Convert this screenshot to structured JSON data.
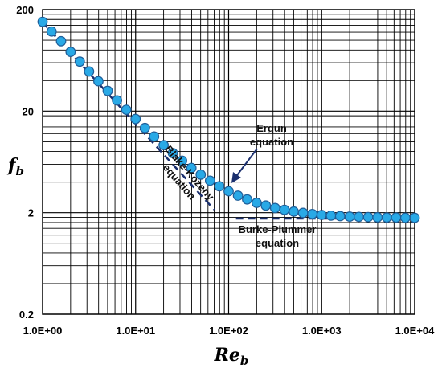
{
  "chart_data": {
    "type": "scatter",
    "xscale": "log",
    "yscale": "log",
    "xlim": [
      1,
      10000
    ],
    "ylim": [
      0.2,
      200
    ],
    "grid": true,
    "xlabel": {
      "main": "Re",
      "sub": "b"
    },
    "ylabel": {
      "main": "f",
      "sub": "b"
    },
    "x_ticks": [
      1,
      10,
      100,
      1000,
      10000
    ],
    "x_tick_labels": [
      "1.0E+00",
      "1.0E+01",
      "1.0E+02",
      "1.0E+03",
      "1.0E+04"
    ],
    "y_ticks": [
      0.2,
      2,
      20,
      200
    ],
    "y_tick_labels": [
      "0.2",
      "2",
      "20",
      "200"
    ],
    "series": [
      {
        "marker": "circle",
        "color": "#29a9e6",
        "edge_color": "#1f5f9a",
        "x": [
          1,
          1.25,
          1.58,
          2,
          2.51,
          3.16,
          3.98,
          5.01,
          6.31,
          7.94,
          10,
          12.6,
          15.8,
          20,
          25.1,
          31.6,
          39.8,
          50.1,
          63.1,
          79.4,
          100,
          126,
          158,
          200,
          251,
          316,
          398,
          501,
          631,
          794,
          1000,
          1260,
          1580,
          2000,
          2510,
          3160,
          3980,
          5010,
          6310,
          7940,
          10000
        ],
        "y": [
          151.75,
          121.75,
          97.69,
          76.75,
          61.51,
          49.19,
          39.45,
          31.69,
          25.52,
          20.64,
          16.75,
          13.65,
          11.24,
          9.25,
          7.72,
          6.5,
          5.52,
          4.74,
          4.13,
          3.64,
          3.25,
          2.94,
          2.7,
          2.5,
          2.35,
          2.22,
          2.13,
          2.05,
          1.99,
          1.94,
          1.9,
          1.87,
          1.85,
          1.83,
          1.82,
          1.81,
          1.8,
          1.79,
          1.79,
          1.78,
          1.78
        ]
      }
    ],
    "reference_lines": [
      {
        "x": [
          1,
          70
        ],
        "y": [
          150,
          2.14
        ],
        "style": "dashed",
        "color": "#1a2f6e"
      },
      {
        "x": [
          120,
          10000
        ],
        "y": [
          1.75,
          1.75
        ],
        "style": "dashed",
        "color": "#1a2f6e"
      }
    ],
    "annotations": [
      {
        "lines": [
          "Ergun",
          "equation"
        ]
      },
      {
        "lines": [
          "Blake-Kozeny",
          "equation"
        ]
      },
      {
        "lines": [
          "Burke-Plummer",
          "equation"
        ]
      }
    ]
  }
}
